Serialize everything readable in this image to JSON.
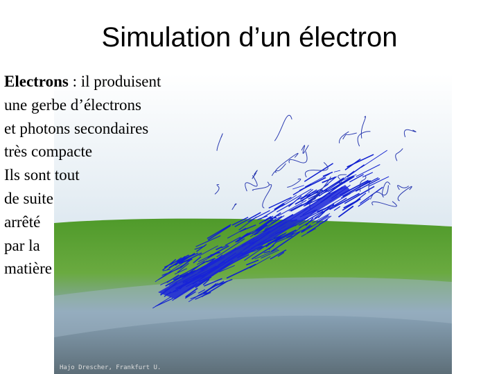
{
  "header": {
    "title": "Simulation d’un électron"
  },
  "body": {
    "term": "Electrons",
    "first_line_rest": " : il produisent",
    "lines": [
      "une gerbe d’électrons",
      "et photons secondaires",
      "très compacte",
      "Ils sont tout",
      "de suite",
      "arrêté",
      "par la",
      "matière"
    ]
  },
  "image": {
    "credit": "Hajo Drescher, Frankfurt U."
  }
}
